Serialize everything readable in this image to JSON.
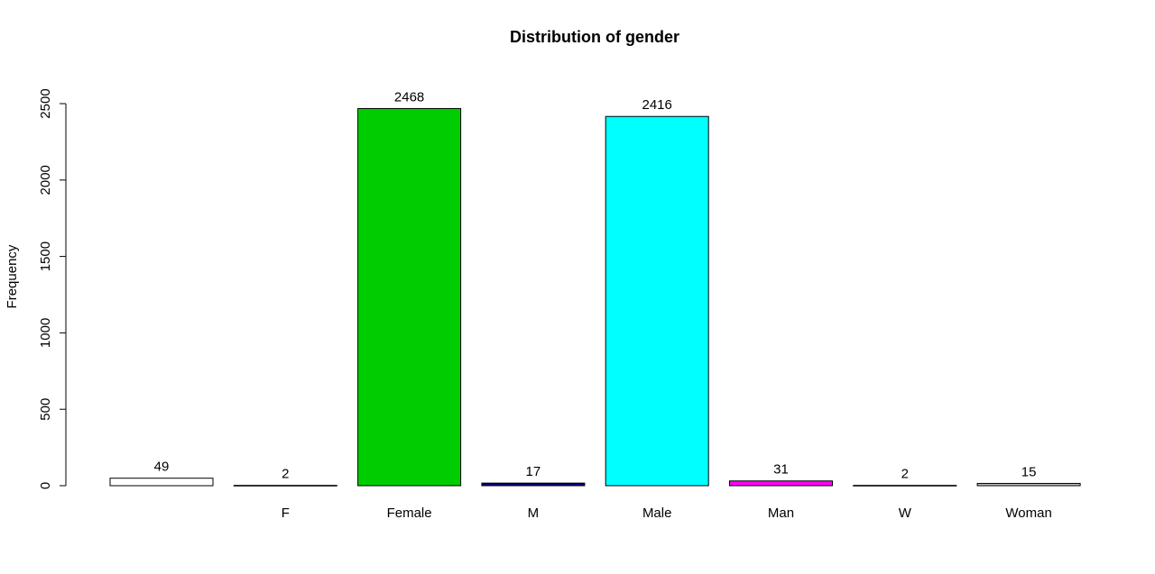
{
  "chart_data": {
    "type": "bar",
    "title": "Distribution of gender",
    "xlabel": "",
    "ylabel": "Frequency",
    "categories": [
      "",
      "F",
      "Female",
      "M",
      "Male",
      "Man",
      "W",
      "Woman"
    ],
    "values": [
      49,
      2,
      2468,
      17,
      2416,
      31,
      2,
      15
    ],
    "bar_colors": [
      "#FFFFFF",
      "#000000",
      "#00CD00",
      "#000080",
      "#00FFFF",
      "#FF00FF",
      "#000000",
      "#BEBEBE"
    ],
    "y_ticks": [
      0,
      500,
      1000,
      1500,
      2000,
      2500
    ],
    "ylim": [
      0,
      2500
    ],
    "grid": false,
    "legend": "none",
    "data_labels": true
  }
}
